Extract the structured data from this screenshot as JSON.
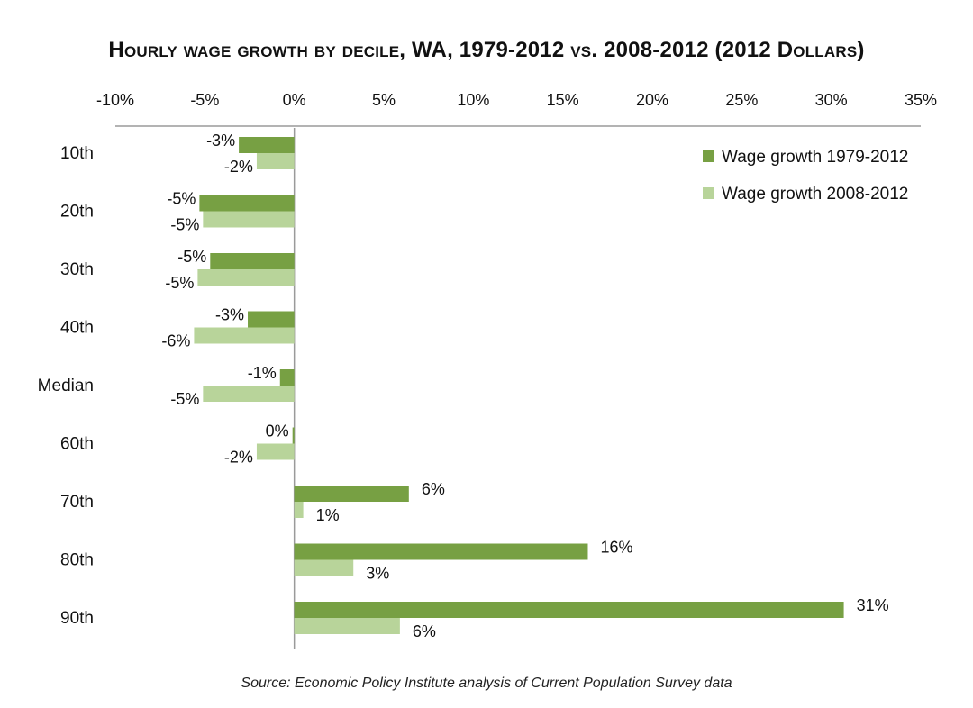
{
  "chart_data": {
    "type": "bar",
    "orientation": "horizontal",
    "title": "Hourly wage growth by decile, WA, 1979-2012 vs. 2008-2012 (2012 Dollars)",
    "source": "Source: Economic Policy Institute analysis of Current Population Survey data",
    "categories": [
      "10th",
      "20th",
      "30th",
      "40th",
      "Median",
      "60th",
      "70th",
      "80th",
      "90th"
    ],
    "series": [
      {
        "name": "Wage growth 1979-2012",
        "color": "#77a043",
        "values": [
          -3.1,
          -5.3,
          -4.7,
          -2.6,
          -0.8,
          -0.1,
          6.4,
          16.4,
          30.7
        ],
        "labels": [
          "-3%",
          "-5%",
          "-5%",
          "-3%",
          "-1%",
          "0%",
          "6%",
          "16%",
          "31%"
        ]
      },
      {
        "name": "Wage growth 2008-2012",
        "color": "#b8d49a",
        "values": [
          -2.1,
          -5.1,
          -5.4,
          -5.6,
          -5.1,
          -2.1,
          0.5,
          3.3,
          5.9
        ],
        "labels": [
          "-2%",
          "-5%",
          "-5%",
          "-6%",
          "-5%",
          "-2%",
          "1%",
          "3%",
          "6%"
        ]
      }
    ],
    "x_ticks": [
      "-10%",
      "-5%",
      "0%",
      "5%",
      "10%",
      "15%",
      "20%",
      "25%",
      "30%",
      "35%"
    ],
    "xlim": [
      -10,
      35
    ],
    "axis_position": "top",
    "grid": false,
    "legend_position": "top-right"
  }
}
